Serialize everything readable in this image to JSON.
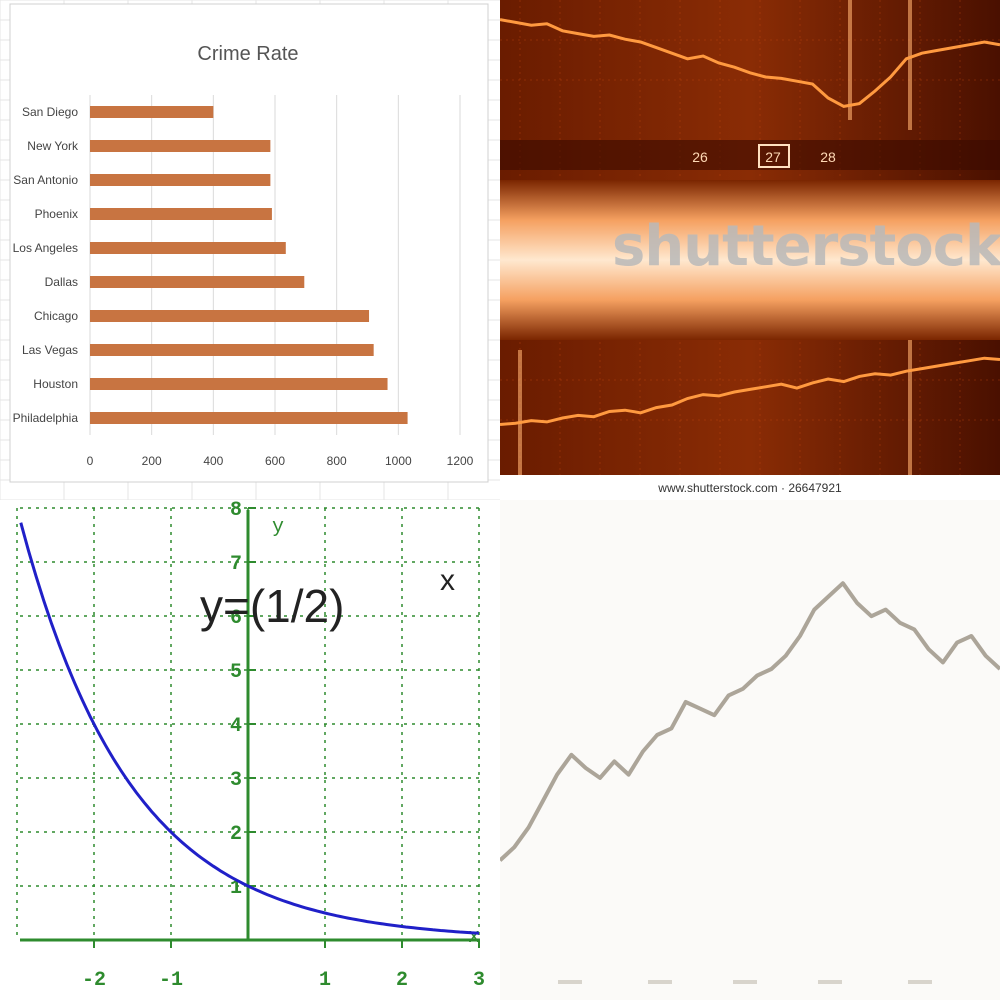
{
  "chart_data": [
    {
      "type": "bar",
      "orientation": "horizontal",
      "title": "Crime Rate",
      "categories": [
        "San Diego",
        "New York",
        "San Antonio",
        "Phoenix",
        "Los Angeles",
        "Dallas",
        "Chicago",
        "Las Vegas",
        "Houston",
        "Philadelphia"
      ],
      "values": [
        400,
        585,
        585,
        590,
        635,
        695,
        905,
        920,
        965,
        1030
      ],
      "xlim": [
        0,
        1200
      ],
      "xticks": [
        "0",
        "200",
        "400",
        "600",
        "800",
        "1000",
        "1200"
      ],
      "grid": true,
      "bar_color": "#c87441"
    },
    {
      "type": "line",
      "style": "stock ticker photo, orange tones",
      "top_series": [
        0.86,
        0.84,
        0.82,
        0.83,
        0.78,
        0.76,
        0.74,
        0.75,
        0.72,
        0.7,
        0.66,
        0.62,
        0.58,
        0.6,
        0.55,
        0.52,
        0.48,
        0.45,
        0.44,
        0.42,
        0.4,
        0.3,
        0.24,
        0.26,
        0.35,
        0.45,
        0.58,
        0.62,
        0.64,
        0.66,
        0.68,
        0.7,
        0.68
      ],
      "bottom_series": [
        0.35,
        0.36,
        0.38,
        0.37,
        0.4,
        0.42,
        0.41,
        0.45,
        0.46,
        0.44,
        0.48,
        0.5,
        0.55,
        0.58,
        0.57,
        0.6,
        0.62,
        0.64,
        0.66,
        0.63,
        0.67,
        0.7,
        0.68,
        0.72,
        0.74,
        0.73,
        0.76,
        0.78,
        0.8,
        0.82,
        0.84,
        0.86,
        0.85
      ],
      "ticker_labels": [
        "26",
        "27",
        "28"
      ],
      "watermark": "shutterstock",
      "watermark_url": "www.shutterstock.com · 26647921",
      "colors": {
        "background": "#5a1500",
        "line": "#ff8a30",
        "band": "#ffe2c4"
      }
    },
    {
      "type": "line",
      "function": "y=(1/2)^x",
      "equation_base": "y=(1/2)",
      "equation_exp": "x",
      "xlim": [
        -3,
        3
      ],
      "ylim": [
        0,
        8
      ],
      "xticks": [
        "-2",
        "-1",
        "1",
        "2",
        "3"
      ],
      "yticks": [
        "1",
        "2",
        "3",
        "4",
        "5",
        "6",
        "7",
        "8"
      ],
      "xlabel": "x",
      "ylabel": "y",
      "grid": true,
      "colors": {
        "curve": "#2020c8",
        "axes": "#2e8b2e",
        "grid": "#2e8b2e"
      }
    },
    {
      "type": "line",
      "style": "faded price chart",
      "values": [
        0.12,
        0.16,
        0.22,
        0.3,
        0.38,
        0.44,
        0.4,
        0.37,
        0.42,
        0.38,
        0.45,
        0.5,
        0.52,
        0.6,
        0.58,
        0.56,
        0.62,
        0.64,
        0.68,
        0.7,
        0.74,
        0.8,
        0.88,
        0.92,
        0.96,
        0.9,
        0.86,
        0.88,
        0.84,
        0.82,
        0.76,
        0.72,
        0.78,
        0.8,
        0.74,
        0.7
      ],
      "colors": {
        "line": "#8a8070"
      }
    }
  ]
}
